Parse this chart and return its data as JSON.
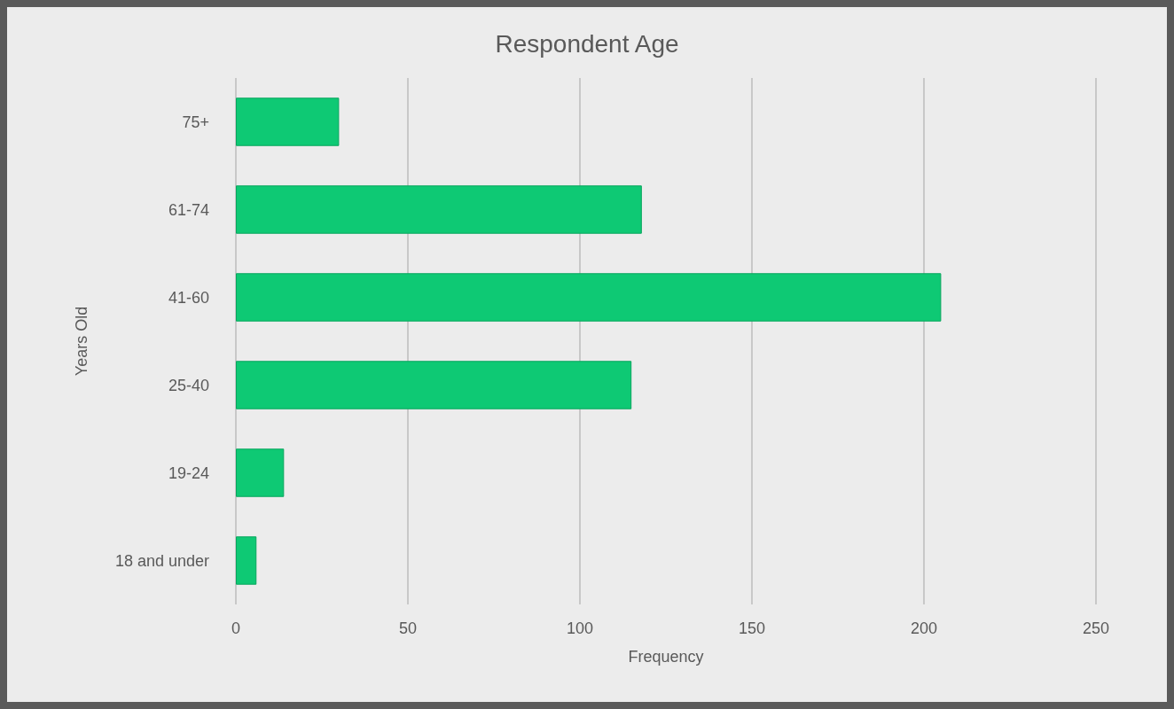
{
  "chart_data": {
    "type": "bar",
    "orientation": "horizontal",
    "title": "Respondent Age",
    "xlabel": "Frequency",
    "ylabel": "Years Old",
    "categories": [
      "75+",
      "61-74",
      "41-60",
      "25-40",
      "19-24",
      "18 and under"
    ],
    "values": [
      30,
      118,
      205,
      115,
      14,
      6
    ],
    "color": "#0ec974",
    "xlim": [
      0,
      250
    ],
    "xticks": [
      0,
      50,
      100,
      150,
      200,
      250
    ],
    "grid": "x"
  }
}
